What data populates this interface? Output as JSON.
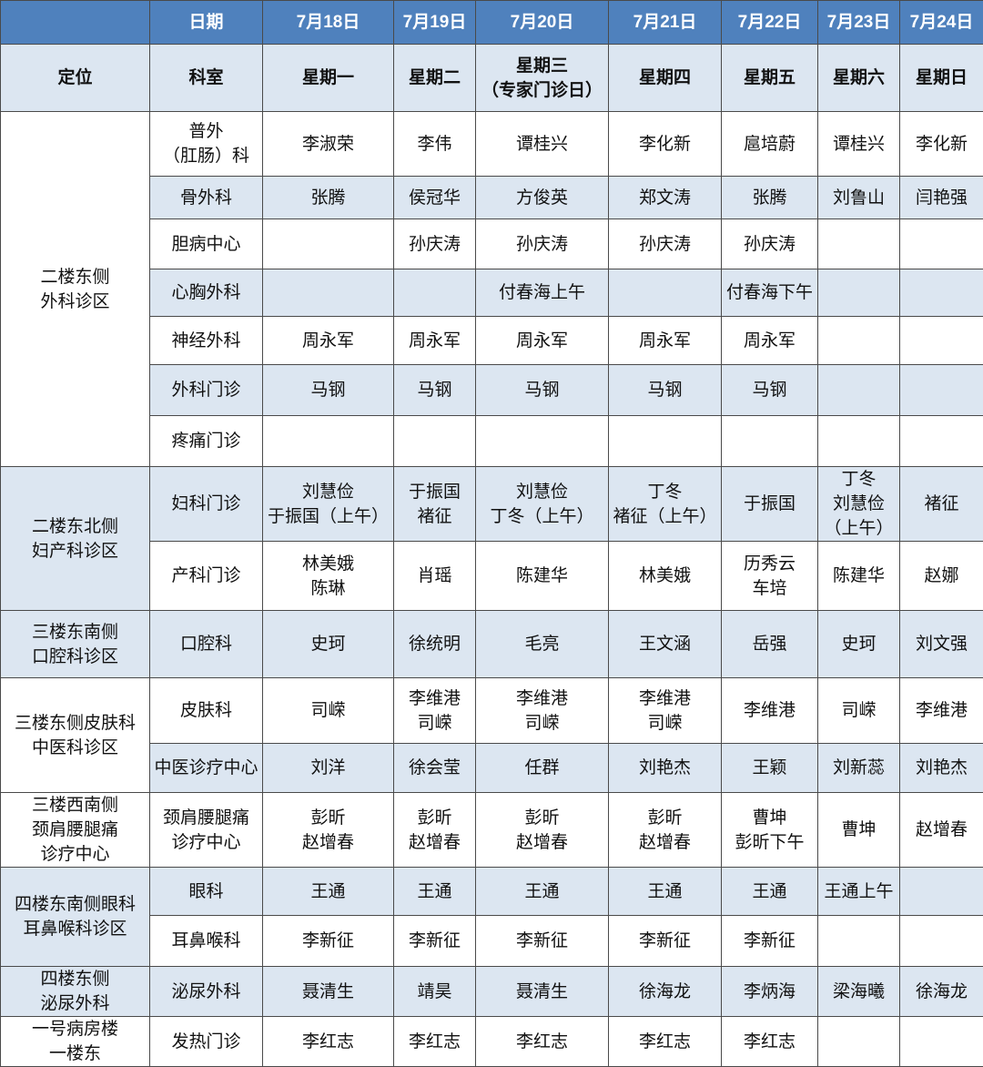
{
  "header": {
    "date_label": "日期",
    "dates": [
      "7月18日",
      "7月19日",
      "7月20日",
      "7月21日",
      "7月22日",
      "7月23日",
      "7月24日"
    ],
    "location_label": "定位",
    "department_label": "科室",
    "weekdays": [
      "星期一",
      "星期二",
      "星期三\n（专家门诊日）",
      "星期四",
      "星期五",
      "星期六",
      "星期日"
    ]
  },
  "colors": {
    "header_blue": "#4f81bd",
    "row_light_blue": "#dce6f1",
    "white": "#ffffff"
  },
  "groups": [
    {
      "location": "二楼东侧\n外科诊区",
      "rows": [
        {
          "department": "普外\n（肛肠）科",
          "doctors": [
            "李淑荣",
            "李伟",
            "谭桂兴",
            "李化新",
            "扈培蔚",
            "谭桂兴",
            "李化新"
          ]
        },
        {
          "department": "骨外科",
          "doctors": [
            "张腾",
            "侯冠华",
            "方俊英",
            "郑文涛",
            "张腾",
            "刘鲁山",
            "闫艳强"
          ]
        },
        {
          "department": "胆病中心",
          "doctors": [
            "",
            "孙庆涛",
            "孙庆涛",
            "孙庆涛",
            "孙庆涛",
            "",
            ""
          ]
        },
        {
          "department": "心胸外科",
          "doctors": [
            "",
            "",
            "付春海上午",
            "",
            "付春海下午",
            "",
            ""
          ]
        },
        {
          "department": "神经外科",
          "doctors": [
            "周永军",
            "周永军",
            "周永军",
            "周永军",
            "周永军",
            "",
            ""
          ]
        },
        {
          "department": "外科门诊",
          "doctors": [
            "马钢",
            "马钢",
            "马钢",
            "马钢",
            "马钢",
            "",
            ""
          ]
        },
        {
          "department": "疼痛门诊",
          "doctors": [
            "",
            "",
            "",
            "",
            "",
            "",
            ""
          ]
        }
      ]
    },
    {
      "location": "二楼东北侧\n妇产科诊区",
      "rows": [
        {
          "department": "妇科门诊",
          "doctors": [
            "刘慧俭\n于振国（上午）",
            "于振国\n褚征",
            "刘慧俭\n丁冬（上午）",
            "丁冬\n褚征（上午）",
            "于振国",
            "丁冬\n刘慧俭\n（上午）",
            "褚征"
          ]
        },
        {
          "department": "产科门诊",
          "doctors": [
            "林美娥\n陈琳",
            "肖瑶",
            "陈建华",
            "林美娥",
            "历秀云\n车培",
            "陈建华",
            "赵娜"
          ]
        }
      ]
    },
    {
      "location": "三楼东南侧\n口腔科诊区",
      "rows": [
        {
          "department": "口腔科",
          "doctors": [
            "史珂",
            "徐统明",
            "毛亮",
            "王文涵",
            "岳强",
            "史珂",
            "刘文强"
          ]
        }
      ]
    },
    {
      "location": "三楼东侧皮肤科\n中医科诊区",
      "rows": [
        {
          "department": "皮肤科",
          "doctors": [
            "司嵘",
            "李维港\n司嵘",
            "李维港\n司嵘",
            "李维港\n司嵘",
            "李维港",
            "司嵘",
            "李维港"
          ]
        },
        {
          "department": "中医诊疗中心",
          "doctors": [
            "刘洋",
            "徐会莹",
            "任群",
            "刘艳杰",
            "王颖",
            "刘新蕊",
            "刘艳杰"
          ]
        }
      ]
    },
    {
      "location": "三楼西南侧\n颈肩腰腿痛\n诊疗中心",
      "rows": [
        {
          "department": "颈肩腰腿痛\n诊疗中心",
          "doctors": [
            "彭昕\n赵增春",
            "彭昕\n赵增春",
            "彭昕\n赵增春",
            "彭昕\n赵增春",
            "曹坤\n彭昕下午",
            "曹坤",
            "赵增春"
          ]
        }
      ]
    },
    {
      "location": "四楼东南侧眼科\n耳鼻喉科诊区",
      "rows": [
        {
          "department": "眼科",
          "doctors": [
            "王通",
            "王通",
            "王通",
            "王通",
            "王通",
            "王通上午",
            ""
          ]
        },
        {
          "department": "耳鼻喉科",
          "doctors": [
            "李新征",
            "李新征",
            "李新征",
            "李新征",
            "李新征",
            "",
            ""
          ]
        }
      ]
    },
    {
      "location": "四楼东侧\n泌尿外科",
      "rows": [
        {
          "department": "泌尿外科",
          "doctors": [
            "聂清生",
            "靖昊",
            "聂清生",
            "徐海龙",
            "李炳海",
            "梁海曦",
            "徐海龙"
          ]
        }
      ]
    },
    {
      "location": "一号病房楼\n一楼东",
      "rows": [
        {
          "department": "发热门诊",
          "doctors": [
            "李红志",
            "李红志",
            "李红志",
            "李红志",
            "李红志",
            "",
            ""
          ]
        }
      ]
    }
  ]
}
